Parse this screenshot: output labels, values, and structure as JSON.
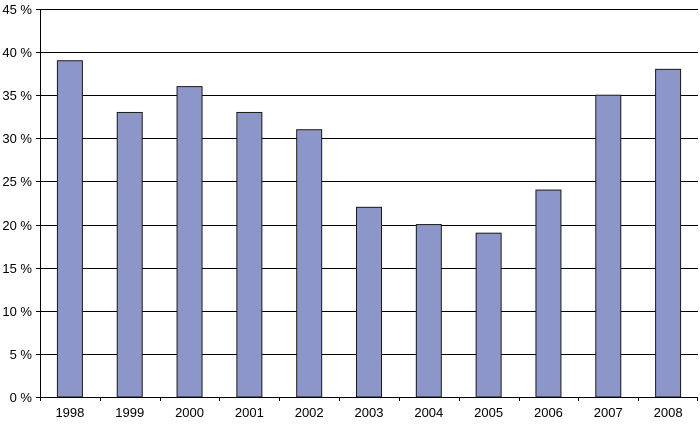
{
  "chart_data": {
    "type": "bar",
    "title": "",
    "xlabel": "",
    "ylabel": "",
    "categories": [
      "1998",
      "1999",
      "2000",
      "2001",
      "2002",
      "2003",
      "2004",
      "2005",
      "2006",
      "2007",
      "2008"
    ],
    "values": [
      39,
      33,
      36,
      33,
      31,
      22,
      20,
      19,
      24,
      35,
      38
    ],
    "ylim": [
      0,
      45
    ],
    "y_ticks": [
      0,
      5,
      10,
      15,
      20,
      25,
      30,
      35,
      40,
      45
    ],
    "y_tick_labels": [
      "0 %",
      "5 %",
      "10 %",
      "15 %",
      "20 %",
      "25 %",
      "30 %",
      "35 %",
      "40 %",
      "45 %"
    ],
    "grid": true,
    "legend": "none",
    "bar_color": "#8c96c8",
    "bar_edge_color": "#1a1a1a",
    "grid_color": "#000000"
  }
}
